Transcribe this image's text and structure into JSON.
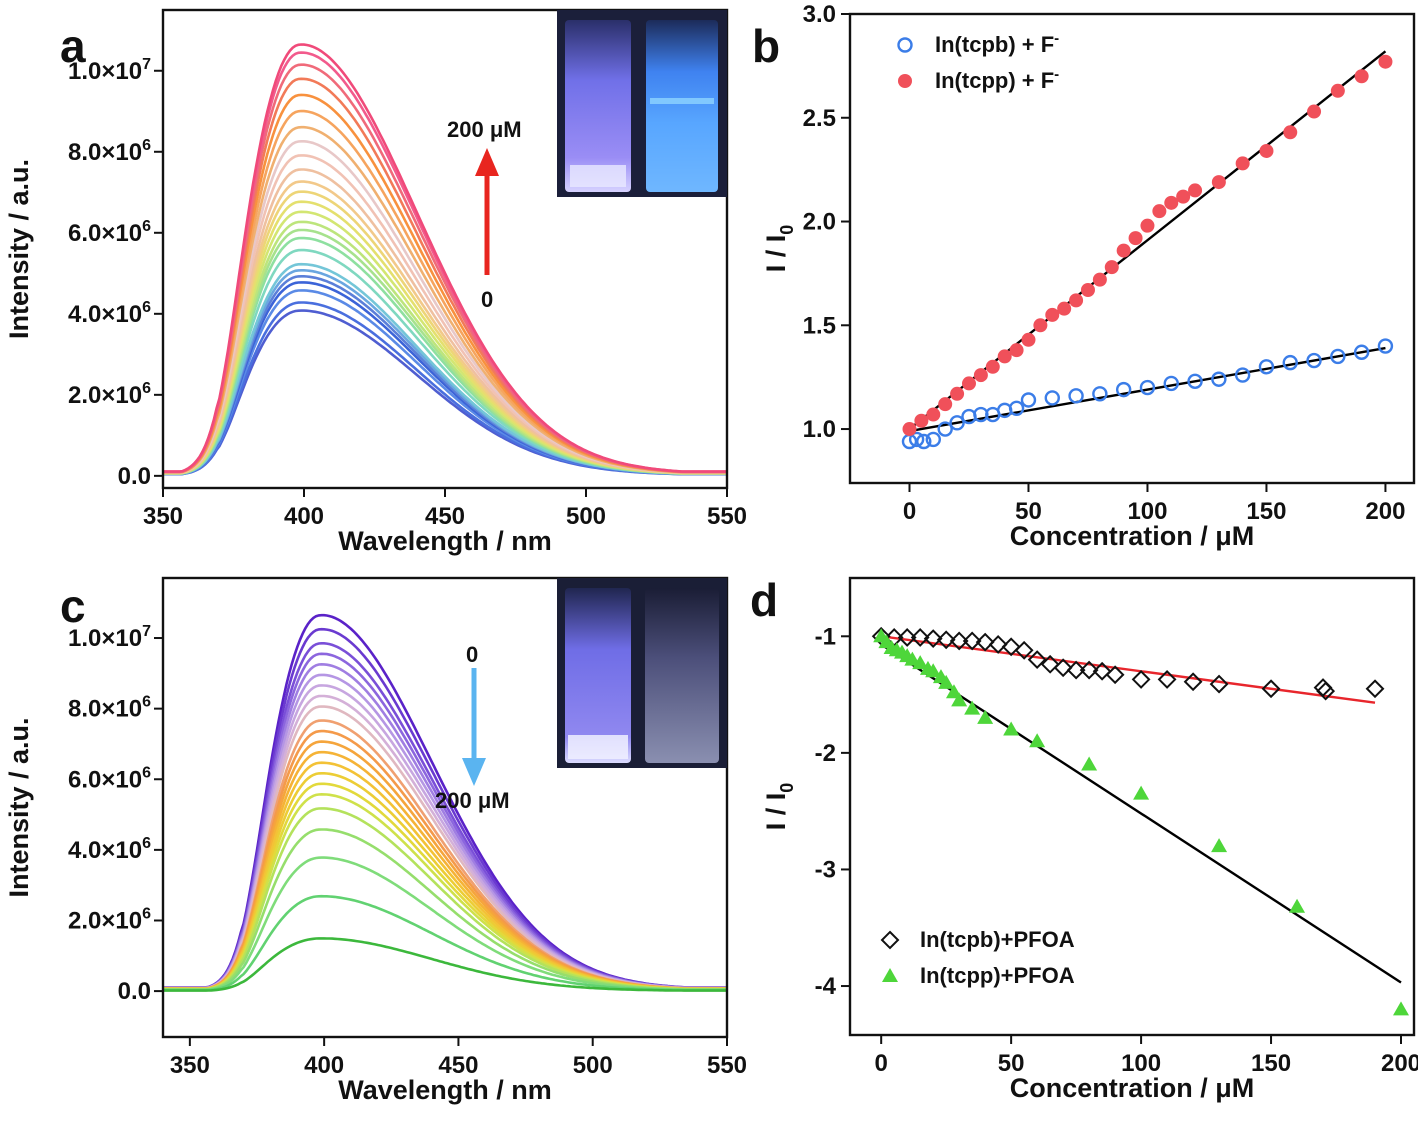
{
  "figure_title": "",
  "chart_data": [
    {
      "id": "a",
      "panel_label": "a",
      "type": "line",
      "xlabel": "Wavelength / nm",
      "ylabel": "Intensity / a.u.",
      "xlim": [
        350,
        550
      ],
      "ylim": [
        -300000,
        11500000
      ],
      "x_ticks": [
        350,
        400,
        450,
        500,
        550
      ],
      "x_tick_labels": [
        "350",
        "400",
        "450",
        "500",
        "550"
      ],
      "y_ticks": [
        0,
        2000000,
        4000000,
        6000000,
        8000000,
        10000000
      ],
      "y_tick_labels": [
        {
          "mant": "0.0",
          "exp": ""
        },
        {
          "mant": "2.0×10",
          "exp": "6"
        },
        {
          "mant": "4.0×10",
          "exp": "6"
        },
        {
          "mant": "6.0×10",
          "exp": "6"
        },
        {
          "mant": "8.0×10",
          "exp": "6"
        },
        {
          "mant": "1.0×10",
          "exp": "7"
        }
      ],
      "peak_wavelength": 398,
      "peak_intensities": [
        4100000,
        4300000,
        4600000,
        4800000,
        4950000,
        5100000,
        5250000,
        5600000,
        5900000,
        6100000,
        6300000,
        6550000,
        6800000,
        7050000,
        7300000,
        7600000,
        7950000,
        8300000,
        8650000,
        9050000,
        9450000,
        9850000,
        10200000,
        10500000,
        10700000
      ],
      "series_colors": [
        "#4f5ed1",
        "#4a6fde",
        "#5a8ae6",
        "#3c64d8",
        "#5b7fd9",
        "#6aa6e0",
        "#74c6d8",
        "#7fd8c0",
        "#8ee0a0",
        "#a7e28d",
        "#bde57c",
        "#d3e672",
        "#e4e06e",
        "#edd577",
        "#f2c98a",
        "#efc0a0",
        "#f1c2b4",
        "#e8c8c8",
        "#f0b070",
        "#f6a45e",
        "#f8913e",
        "#f27a58",
        "#f06a7a",
        "#f25a8c",
        "#f04a7a"
      ],
      "annotations": {
        "top": "200 μM",
        "bottom": "0"
      },
      "arrow_direction": "up",
      "arrow_color": "#e8251f"
    },
    {
      "id": "b",
      "panel_label": "b",
      "type": "scatter",
      "xlabel": "Concentration / μM",
      "ylabel": {
        "main": "I / I",
        "sub": "0"
      },
      "xlim": [
        -25,
        212
      ],
      "ylim": [
        0.74,
        3.0
      ],
      "x_ticks": [
        0,
        50,
        100,
        150,
        200
      ],
      "x_tick_labels": [
        "0",
        "50",
        "100",
        "150",
        "200"
      ],
      "y_ticks": [
        1.0,
        1.5,
        2.0,
        2.5,
        3.0
      ],
      "y_tick_labels": [
        "1.0",
        "1.5",
        "2.0",
        "2.5",
        "3.0"
      ],
      "series": [
        {
          "name": "In(tcpb) + F",
          "name_sup": "-",
          "marker": "open-circle",
          "color": "#3b7de8",
          "x": [
            0,
            3,
            6,
            10,
            15,
            20,
            25,
            30,
            35,
            40,
            45,
            50,
            60,
            70,
            80,
            90,
            100,
            110,
            120,
            130,
            140,
            150,
            160,
            170,
            180,
            190,
            200
          ],
          "y": [
            0.94,
            0.95,
            0.94,
            0.95,
            1.0,
            1.03,
            1.06,
            1.07,
            1.07,
            1.09,
            1.1,
            1.14,
            1.15,
            1.16,
            1.17,
            1.19,
            1.2,
            1.22,
            1.23,
            1.24,
            1.26,
            1.3,
            1.32,
            1.33,
            1.35,
            1.37,
            1.4
          ],
          "fit": {
            "x": [
              0,
              200
            ],
            "y": [
              0.99,
              1.39
            ],
            "color": "#000000"
          }
        },
        {
          "name": "In(tcpp) + F",
          "name_sup": "-",
          "marker": "filled-circle",
          "color": "#f0505a",
          "x": [
            0,
            5,
            10,
            15,
            20,
            25,
            30,
            35,
            40,
            45,
            50,
            55,
            60,
            65,
            70,
            75,
            80,
            85,
            90,
            95,
            100,
            105,
            110,
            115,
            120,
            130,
            140,
            150,
            160,
            170,
            180,
            190,
            200
          ],
          "y": [
            1.0,
            1.04,
            1.07,
            1.12,
            1.17,
            1.22,
            1.26,
            1.3,
            1.35,
            1.38,
            1.43,
            1.5,
            1.55,
            1.58,
            1.62,
            1.67,
            1.72,
            1.78,
            1.86,
            1.92,
            1.98,
            2.05,
            2.09,
            2.12,
            2.15,
            2.19,
            2.28,
            2.34,
            2.43,
            2.53,
            2.63,
            2.7,
            2.77
          ],
          "fit": {
            "x": [
              0,
              200
            ],
            "y": [
              1.0,
              2.82
            ],
            "color": "#000000"
          }
        }
      ],
      "legend_position": "top-left"
    },
    {
      "id": "c",
      "panel_label": "c",
      "type": "line",
      "xlabel": "Wavelength / nm",
      "ylabel": "Intensity / a.u.",
      "xlim": [
        340,
        550
      ],
      "ylim": [
        -1300000,
        11700000
      ],
      "x_ticks": [
        350,
        400,
        450,
        500,
        550
      ],
      "x_tick_labels": [
        "350",
        "400",
        "450",
        "500",
        "550"
      ],
      "y_ticks": [
        0,
        2000000,
        4000000,
        6000000,
        8000000,
        10000000
      ],
      "y_tick_labels": [
        {
          "mant": "0.0",
          "exp": ""
        },
        {
          "mant": "2.0×10",
          "exp": "6"
        },
        {
          "mant": "4.0×10",
          "exp": "6"
        },
        {
          "mant": "6.0×10",
          "exp": "6"
        },
        {
          "mant": "8.0×10",
          "exp": "6"
        },
        {
          "mant": "1.0×10",
          "exp": "7"
        }
      ],
      "peak_wavelength": 398,
      "peak_intensities": [
        10700000,
        10300000,
        9900000,
        9600000,
        9300000,
        9000000,
        8700000,
        8400000,
        8100000,
        7700000,
        7400000,
        7100000,
        6800000,
        6500000,
        6200000,
        5900000,
        5600000,
        5200000,
        4600000,
        3800000,
        2700000,
        1500000
      ],
      "series_colors": [
        "#5a22c8",
        "#6a3ad0",
        "#7a4fd8",
        "#8c66de",
        "#a07ee2",
        "#b596e4",
        "#c7a6e0",
        "#d4b0d8",
        "#e0b8c0",
        "#f0a070",
        "#f49a4a",
        "#f5a53c",
        "#f5b336",
        "#f3c236",
        "#eccd35",
        "#e2d93b",
        "#cfe14a",
        "#b4e25c",
        "#96de6c",
        "#7fdc7a",
        "#61d271",
        "#3cb83c"
      ],
      "annotations": {
        "top": "0",
        "bottom": "200 μM"
      },
      "arrow_direction": "down",
      "arrow_color": "#5ab4f0"
    },
    {
      "id": "d",
      "panel_label": "d",
      "type": "scatter",
      "xlabel": "Concentration / μM",
      "ylabel": {
        "main": "I / I",
        "sub": "0"
      },
      "xlim": [
        -12,
        205
      ],
      "ylim": [
        -4.42,
        -0.5
      ],
      "x_ticks": [
        0,
        50,
        100,
        150,
        200
      ],
      "x_tick_labels": [
        "0",
        "50",
        "100",
        "150",
        "200"
      ],
      "y_ticks": [
        -1,
        -2,
        -3,
        -4
      ],
      "y_tick_labels": [
        "-1",
        "-2",
        "-3",
        "-4"
      ],
      "series": [
        {
          "name": "In(tcpb)+PFOA",
          "marker": "open-diamond",
          "color": "#111111",
          "x": [
            0,
            5,
            10,
            15,
            20,
            25,
            30,
            35,
            40,
            45,
            50,
            55,
            60,
            65,
            70,
            75,
            80,
            85,
            90,
            100,
            110,
            120,
            130,
            150,
            170,
            171,
            190
          ],
          "y": [
            -1.0,
            -1.01,
            -1.01,
            -1.01,
            -1.02,
            -1.03,
            -1.04,
            -1.04,
            -1.05,
            -1.07,
            -1.09,
            -1.12,
            -1.2,
            -1.24,
            -1.27,
            -1.29,
            -1.29,
            -1.3,
            -1.33,
            -1.37,
            -1.37,
            -1.39,
            -1.41,
            -1.45,
            -1.44,
            -1.47,
            -1.45
          ],
          "fit": {
            "x": [
              0,
              190
            ],
            "y": [
              -1.0,
              -1.57
            ],
            "color": "#e8262c"
          }
        },
        {
          "name": "In(tcpp)+PFOA",
          "marker": "filled-triangle",
          "color": "#4ed63a",
          "x": [
            0,
            2,
            4,
            6,
            8,
            10,
            12,
            15,
            18,
            20,
            23,
            25,
            28,
            30,
            35,
            40,
            50,
            60,
            80,
            100,
            130,
            160,
            200
          ],
          "y": [
            -1.0,
            -1.05,
            -1.1,
            -1.12,
            -1.14,
            -1.17,
            -1.2,
            -1.23,
            -1.28,
            -1.3,
            -1.35,
            -1.4,
            -1.48,
            -1.55,
            -1.62,
            -1.7,
            -1.8,
            -1.9,
            -2.1,
            -2.35,
            -2.8,
            -3.32,
            -4.2
          ],
          "fit": {
            "x": [
              0,
              200
            ],
            "y": [
              -1.07,
              -3.97
            ],
            "color": "#000000"
          }
        }
      ],
      "legend_position": "bottom-left"
    }
  ],
  "insets": [
    {
      "id": "a",
      "left_label": "",
      "right_label": ""
    },
    {
      "id": "c",
      "left_label": "",
      "right_label": ""
    }
  ]
}
